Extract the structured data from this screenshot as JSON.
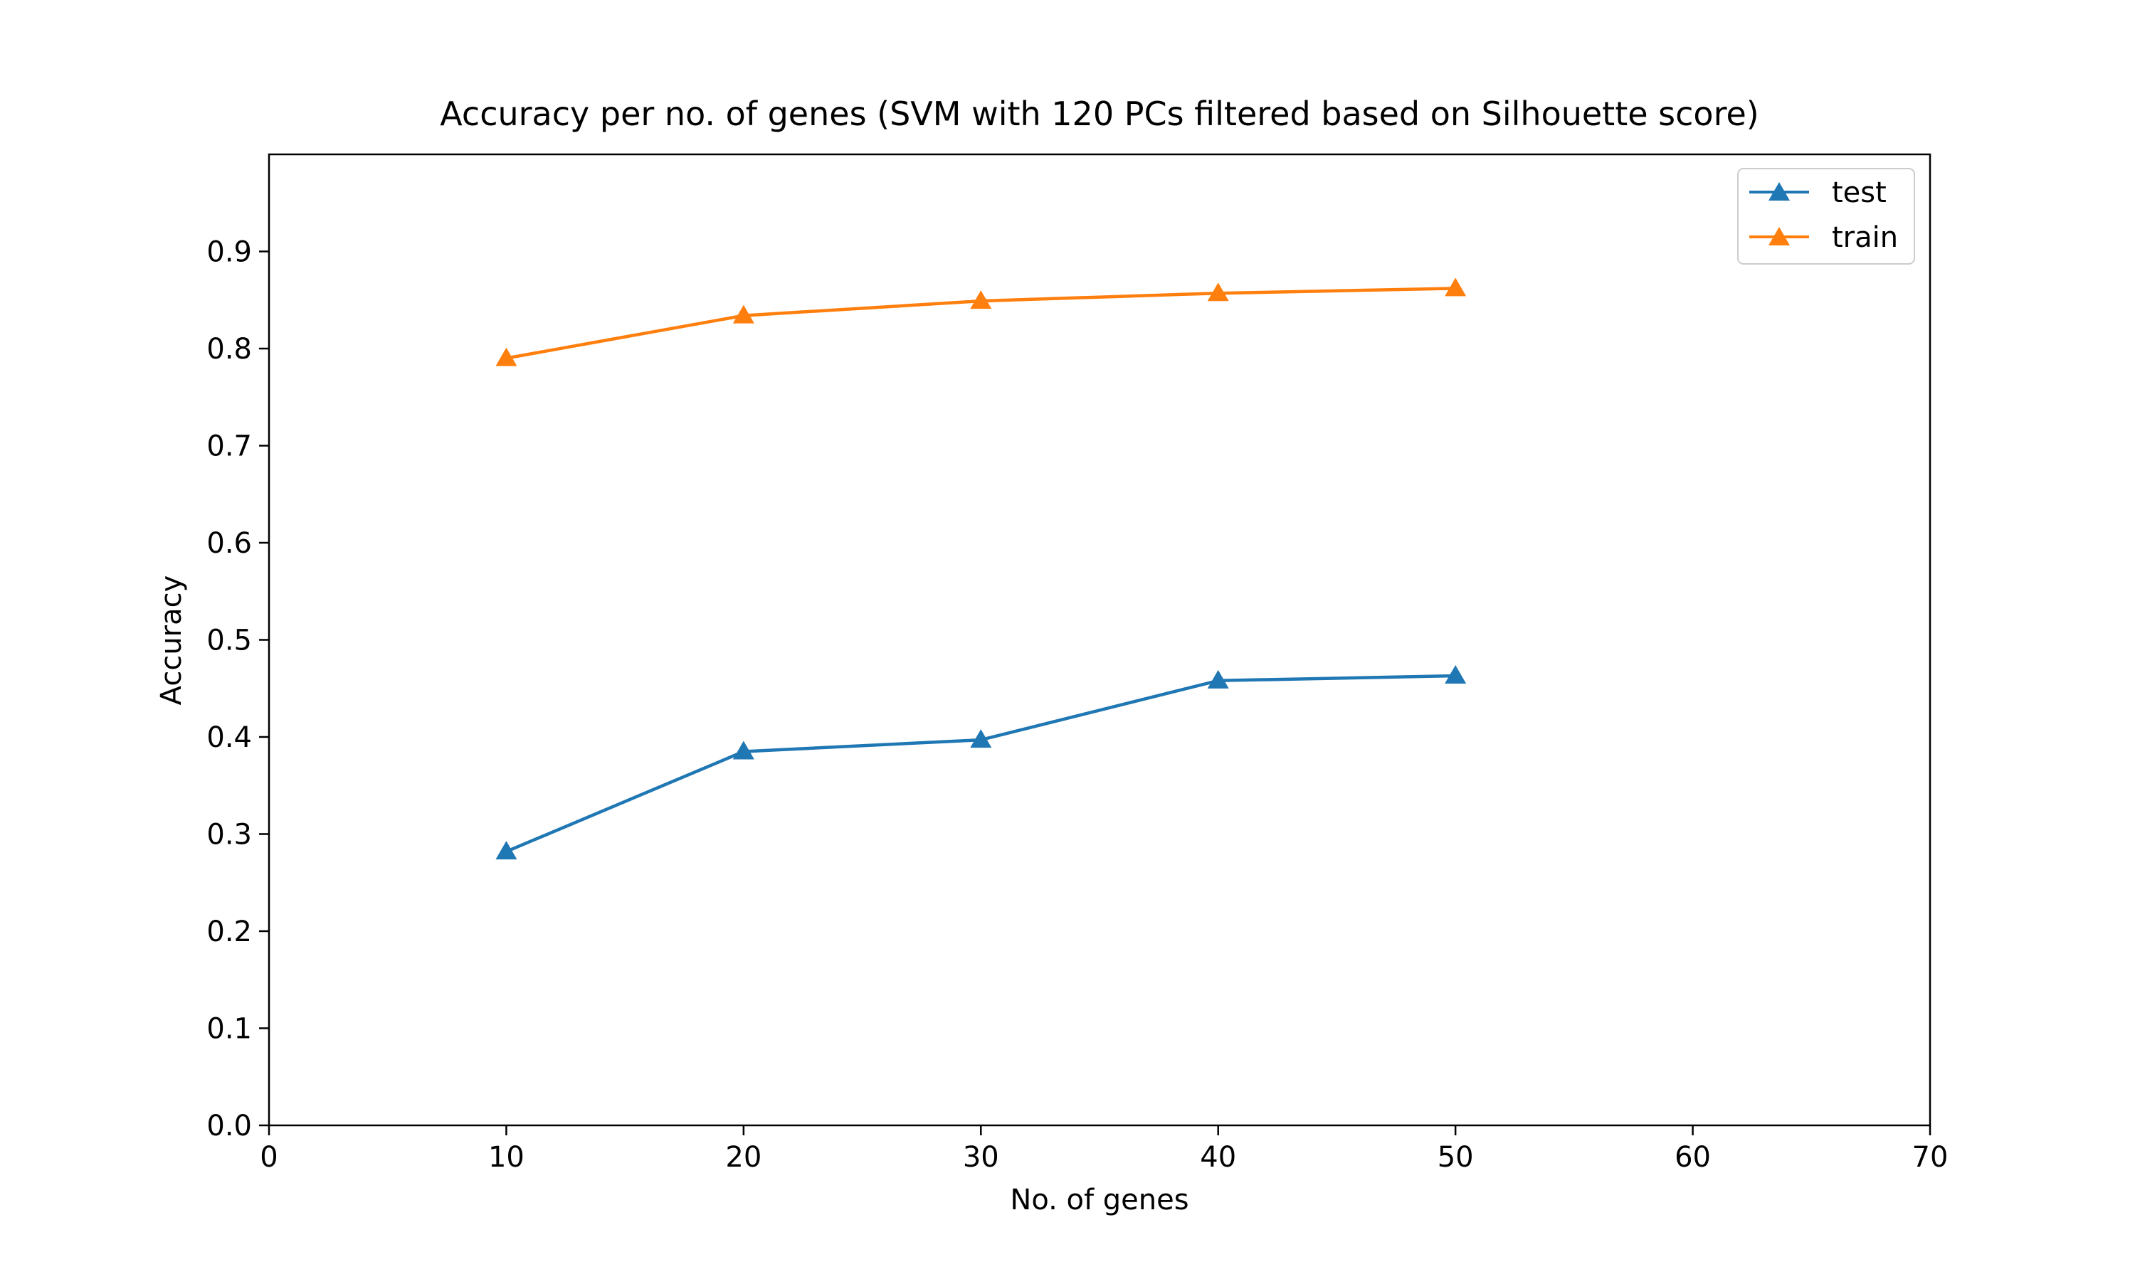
{
  "chart_data": {
    "type": "line",
    "title": "Accuracy per no. of genes (SVM with 120 PCs filtered based on Silhouette score)",
    "xlabel": "No. of genes",
    "ylabel": "Accuracy",
    "xlim": [
      0,
      70
    ],
    "ylim": [
      0,
      1.0
    ],
    "xticks": [
      0,
      10,
      20,
      30,
      40,
      50,
      60,
      70
    ],
    "yticks": [
      0.0,
      0.1,
      0.2,
      0.3,
      0.4,
      0.5,
      0.6,
      0.7,
      0.8,
      0.9
    ],
    "xtick_labels": [
      "0",
      "10",
      "20",
      "30",
      "40",
      "50",
      "60",
      "70"
    ],
    "ytick_labels": [
      "0.0",
      "0.1",
      "0.2",
      "0.3",
      "0.4",
      "0.5",
      "0.6",
      "0.7",
      "0.8",
      "0.9"
    ],
    "grid": false,
    "legend_position": "top-right",
    "x": [
      10,
      20,
      30,
      40,
      50
    ],
    "series": [
      {
        "name": "test",
        "color": "#1f77b4",
        "marker": "triangle-up",
        "values": [
          0.282,
          0.385,
          0.397,
          0.458,
          0.463
        ]
      },
      {
        "name": "train",
        "color": "#ff7f0e",
        "marker": "triangle-up",
        "values": [
          0.79,
          0.834,
          0.849,
          0.857,
          0.862
        ]
      }
    ]
  }
}
